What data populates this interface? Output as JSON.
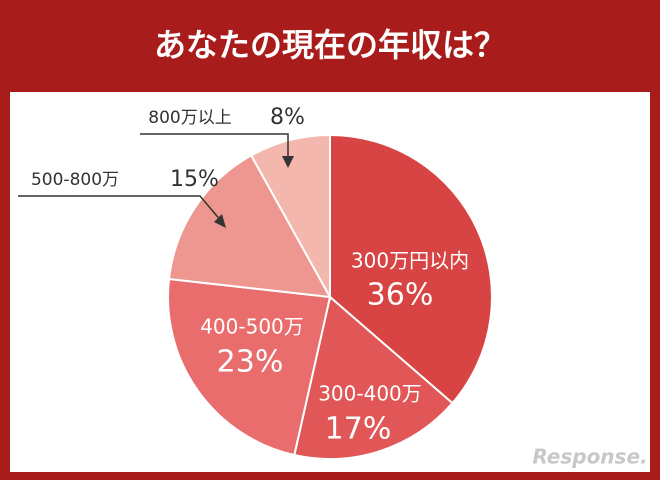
{
  "chart_data": {
    "type": "pie",
    "title": "あなたの現在の年収は？",
    "categories": [
      "300万円以内",
      "300-400万",
      "400-500万",
      "500-800万",
      "800万以上"
    ],
    "values": [
      36,
      17,
      23,
      15,
      8
    ],
    "value_labels": [
      "36%",
      "17%",
      "23%",
      "15%",
      "8%"
    ],
    "colors": [
      "#d84343",
      "#e15656",
      "#e96d6d",
      "#ee9790",
      "#f3b7ae"
    ],
    "watermark": "Response."
  }
}
